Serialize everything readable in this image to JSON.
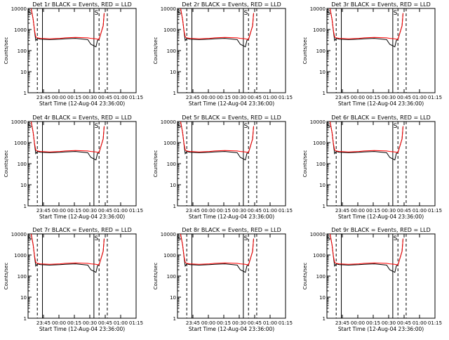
{
  "colors": {
    "events": "#000000",
    "lld": "#ff0000",
    "background": "#ffffff"
  },
  "common": {
    "ylabel": "Counts/sec",
    "xlabel": "Start Time (12-Aug-04 23:36:00)",
    "ylim": [
      1,
      10000
    ],
    "yscale": "log",
    "xlim_minutes": [
      -6,
      99
    ],
    "ytick_labels": [
      "1",
      "10",
      "100",
      "1000",
      "10000"
    ],
    "xtick_labels": [
      "23:45",
      "00:00",
      "00:15",
      "00:30",
      "00:45",
      "01:00",
      "01:15"
    ],
    "marker_label": "S"
  },
  "chart_data": [
    {
      "type": "line",
      "title": "Det 1r  BLACK = Events, RED = LLD",
      "series": [
        {
          "name": "Events",
          "x": [
            -3,
            -1,
            0.5,
            1.5,
            3,
            6,
            15,
            25,
            30,
            40,
            52,
            55,
            60,
            61.5,
            63,
            65,
            67,
            68
          ],
          "y": [
            10000,
            3000,
            700,
            300,
            380,
            350,
            330,
            350,
            360,
            380,
            330,
            200,
            150,
            310,
            330,
            700,
            1500,
            6000
          ]
        },
        {
          "name": "LLD",
          "x": [
            -3,
            -1,
            0.5,
            1.5,
            3,
            6,
            15,
            25,
            30,
            40,
            52,
            55,
            60,
            61.5,
            63,
            65,
            67,
            68
          ],
          "y": [
            10000,
            3000,
            800,
            450,
            400,
            380,
            360,
            380,
            400,
            420,
            400,
            380,
            360,
            350,
            340,
            700,
            1500,
            6000
          ]
        }
      ]
    },
    {
      "type": "line",
      "title": "Det 2r  BLACK = Events, RED = LLD",
      "series": [
        {
          "name": "Events",
          "x": [
            -3,
            -1,
            0.5,
            1.5,
            3,
            6,
            15,
            25,
            30,
            40,
            52,
            55,
            60,
            61.5,
            63,
            65,
            67,
            68
          ],
          "y": [
            10000,
            3000,
            700,
            300,
            380,
            350,
            330,
            350,
            360,
            380,
            330,
            200,
            150,
            310,
            330,
            700,
            1500,
            6000
          ]
        },
        {
          "name": "LLD",
          "x": [
            -3,
            -1,
            0.5,
            1.5,
            3,
            6,
            15,
            25,
            30,
            40,
            52,
            55,
            60,
            61.5,
            63,
            65,
            67,
            68
          ],
          "y": [
            10000,
            3000,
            800,
            450,
            400,
            380,
            360,
            380,
            400,
            420,
            400,
            380,
            360,
            350,
            340,
            700,
            1500,
            6000
          ]
        }
      ]
    },
    {
      "type": "line",
      "title": "Det 3r  BLACK = Events, RED = LLD",
      "series": [
        {
          "name": "Events",
          "x": [
            -3,
            -1,
            0.5,
            1.5,
            3,
            6,
            15,
            25,
            30,
            40,
            52,
            55,
            60,
            61.5,
            63,
            65,
            67,
            68
          ],
          "y": [
            10000,
            3000,
            700,
            300,
            380,
            350,
            330,
            350,
            360,
            380,
            330,
            200,
            150,
            310,
            330,
            700,
            1500,
            6000
          ]
        },
        {
          "name": "LLD",
          "x": [
            -3,
            -1,
            0.5,
            1.5,
            3,
            6,
            15,
            25,
            30,
            40,
            52,
            55,
            60,
            61.5,
            63,
            65,
            67,
            68
          ],
          "y": [
            10000,
            3000,
            800,
            450,
            400,
            380,
            360,
            380,
            400,
            420,
            400,
            380,
            360,
            350,
            340,
            700,
            1500,
            6000
          ]
        }
      ]
    },
    {
      "type": "line",
      "title": "Det 4r  BLACK = Events, RED = LLD",
      "series": [
        {
          "name": "Events",
          "x": [
            -3,
            -1,
            0.5,
            1.5,
            3,
            6,
            15,
            25,
            30,
            40,
            52,
            55,
            60,
            61.5,
            63,
            65,
            67,
            68
          ],
          "y": [
            10000,
            3000,
            700,
            300,
            380,
            350,
            330,
            350,
            360,
            380,
            330,
            200,
            150,
            310,
            330,
            700,
            1500,
            6000
          ]
        },
        {
          "name": "LLD",
          "x": [
            -3,
            -1,
            0.5,
            1.5,
            3,
            6,
            15,
            25,
            30,
            40,
            52,
            55,
            60,
            61.5,
            63,
            65,
            67,
            68
          ],
          "y": [
            10000,
            3000,
            800,
            450,
            400,
            380,
            360,
            380,
            400,
            420,
            400,
            380,
            360,
            350,
            340,
            700,
            1500,
            6000
          ]
        }
      ]
    },
    {
      "type": "line",
      "title": "Det 5r  BLACK = Events, RED = LLD",
      "series": [
        {
          "name": "Events",
          "x": [
            -3,
            -1,
            0.5,
            1.5,
            3,
            6,
            15,
            25,
            30,
            40,
            52,
            55,
            60,
            61.5,
            63,
            65,
            67,
            68
          ],
          "y": [
            10000,
            3000,
            700,
            300,
            380,
            350,
            330,
            350,
            360,
            380,
            330,
            200,
            150,
            310,
            330,
            700,
            1500,
            6000
          ]
        },
        {
          "name": "LLD",
          "x": [
            -3,
            -1,
            0.5,
            1.5,
            3,
            6,
            15,
            25,
            30,
            40,
            52,
            55,
            60,
            61.5,
            63,
            65,
            67,
            68
          ],
          "y": [
            10000,
            3000,
            800,
            450,
            400,
            380,
            360,
            380,
            400,
            420,
            400,
            380,
            360,
            350,
            340,
            700,
            1500,
            6000
          ]
        }
      ]
    },
    {
      "type": "line",
      "title": "Det 6r  BLACK = Events, RED = LLD",
      "series": [
        {
          "name": "Events",
          "x": [
            -3,
            -1,
            0.5,
            1.5,
            3,
            6,
            15,
            25,
            30,
            40,
            52,
            55,
            60,
            61.5,
            63,
            65,
            67,
            68
          ],
          "y": [
            10000,
            3000,
            700,
            300,
            380,
            350,
            330,
            350,
            360,
            380,
            330,
            200,
            150,
            310,
            330,
            700,
            1500,
            6000
          ]
        },
        {
          "name": "LLD",
          "x": [
            -3,
            -1,
            0.5,
            1.5,
            3,
            6,
            15,
            25,
            30,
            40,
            52,
            55,
            60,
            61.5,
            63,
            65,
            67,
            68
          ],
          "y": [
            10000,
            3000,
            800,
            450,
            400,
            380,
            360,
            380,
            400,
            420,
            400,
            380,
            360,
            350,
            340,
            700,
            1500,
            6000
          ]
        }
      ]
    },
    {
      "type": "line",
      "title": "Det 7r  BLACK = Events, RED = LLD",
      "series": [
        {
          "name": "Events",
          "x": [
            -3,
            -1,
            0.5,
            1.5,
            3,
            6,
            15,
            25,
            30,
            40,
            52,
            55,
            60,
            61.5,
            63,
            65,
            67,
            68
          ],
          "y": [
            10000,
            3000,
            700,
            300,
            380,
            350,
            330,
            350,
            360,
            380,
            330,
            200,
            150,
            310,
            330,
            700,
            1500,
            6000
          ]
        },
        {
          "name": "LLD",
          "x": [
            -3,
            -1,
            0.5,
            1.5,
            3,
            6,
            15,
            25,
            30,
            40,
            52,
            55,
            60,
            61.5,
            63,
            65,
            67,
            68
          ],
          "y": [
            10000,
            3000,
            800,
            450,
            400,
            380,
            360,
            380,
            400,
            420,
            400,
            380,
            360,
            350,
            340,
            700,
            1500,
            6000
          ]
        }
      ]
    },
    {
      "type": "line",
      "title": "Det 8r  BLACK = Events, RED = LLD",
      "series": [
        {
          "name": "Events",
          "x": [
            -3,
            -1,
            0.5,
            1.5,
            3,
            6,
            15,
            25,
            30,
            40,
            52,
            55,
            60,
            61.5,
            63,
            65,
            67,
            68
          ],
          "y": [
            10000,
            3000,
            700,
            300,
            380,
            350,
            330,
            350,
            360,
            380,
            330,
            200,
            150,
            310,
            330,
            700,
            1500,
            6000
          ]
        },
        {
          "name": "LLD",
          "x": [
            -3,
            -1,
            0.5,
            1.5,
            3,
            6,
            15,
            25,
            30,
            40,
            52,
            55,
            60,
            61.5,
            63,
            65,
            67,
            68
          ],
          "y": [
            10000,
            3000,
            800,
            450,
            400,
            380,
            360,
            380,
            400,
            420,
            400,
            380,
            360,
            350,
            340,
            700,
            1500,
            6000
          ]
        }
      ]
    },
    {
      "type": "line",
      "title": "Det 9r  BLACK = Events, RED = LLD",
      "series": [
        {
          "name": "Events",
          "x": [
            -3,
            -1,
            0.5,
            1.5,
            3,
            6,
            15,
            25,
            30,
            40,
            52,
            55,
            60,
            61.5,
            63,
            65,
            67,
            68
          ],
          "y": [
            10000,
            3000,
            700,
            300,
            380,
            350,
            330,
            350,
            360,
            380,
            330,
            200,
            150,
            310,
            330,
            700,
            1500,
            6000
          ]
        },
        {
          "name": "LLD",
          "x": [
            -3,
            -1,
            0.5,
            1.5,
            3,
            6,
            15,
            25,
            30,
            40,
            52,
            55,
            60,
            61.5,
            63,
            65,
            67,
            68
          ],
          "y": [
            10000,
            3000,
            800,
            450,
            400,
            380,
            360,
            380,
            400,
            420,
            400,
            380,
            360,
            350,
            340,
            700,
            1500,
            6000
          ]
        }
      ]
    }
  ]
}
